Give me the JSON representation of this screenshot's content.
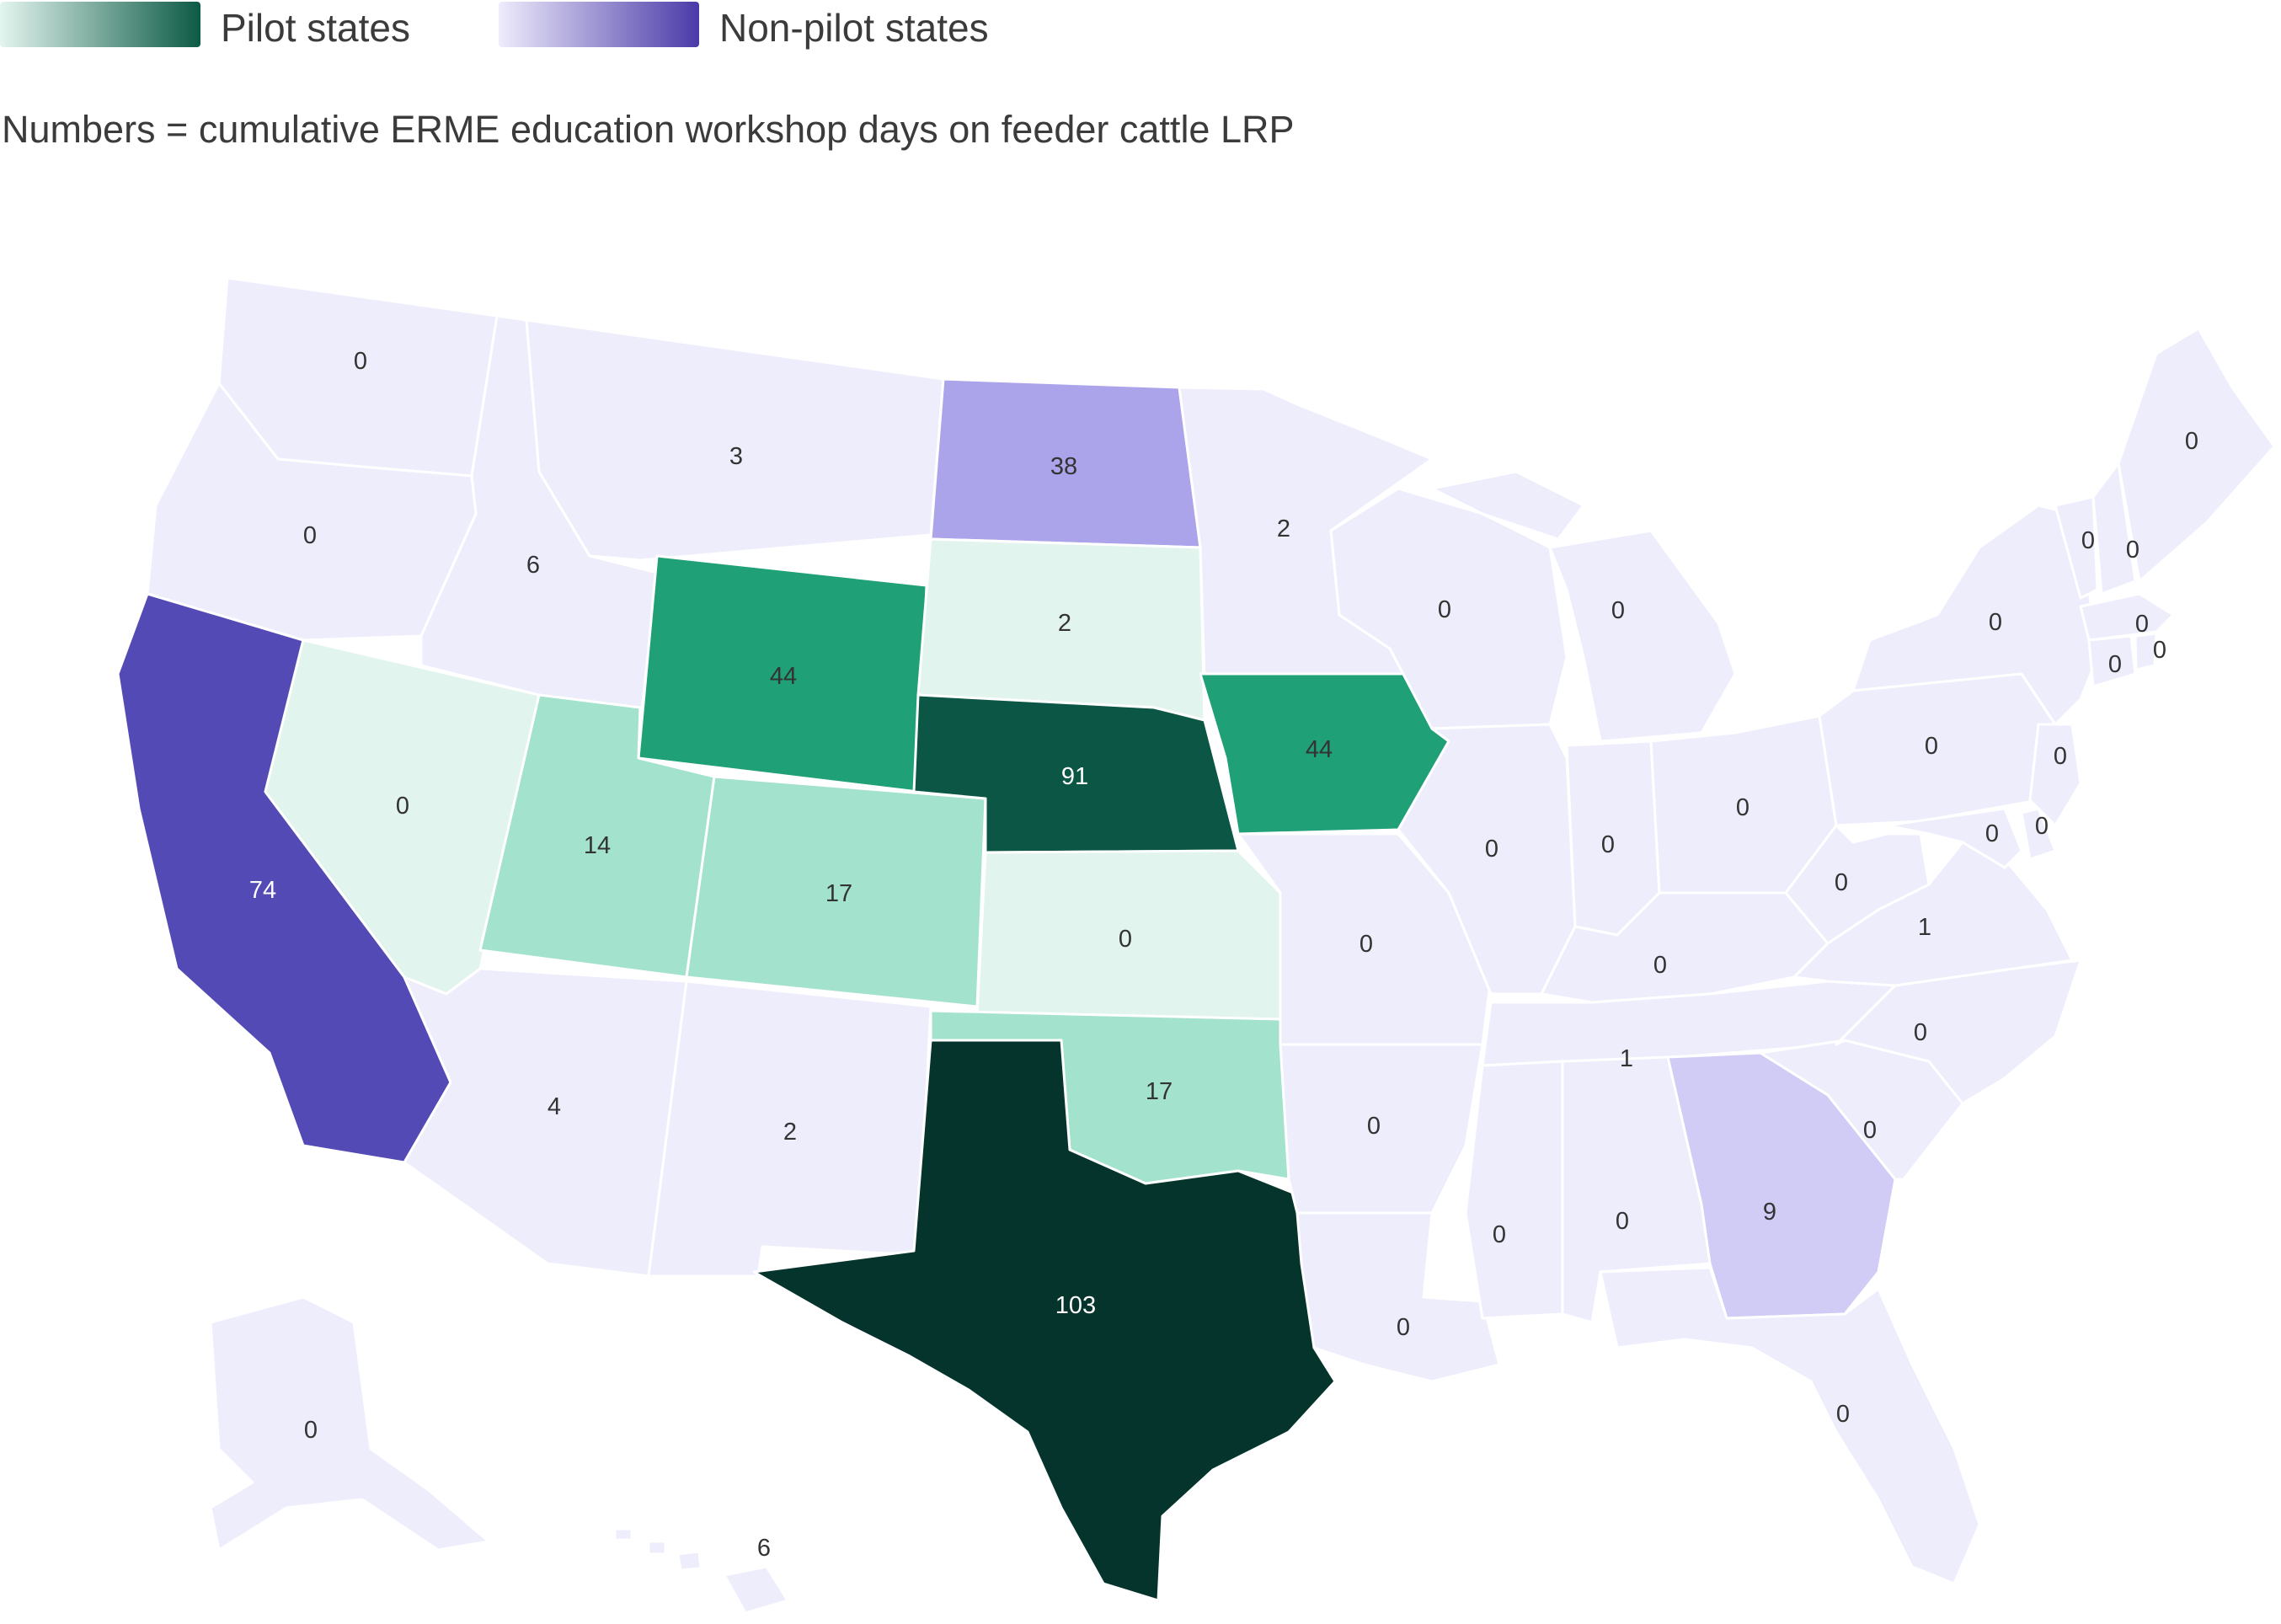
{
  "legend": {
    "pilot_label": "Pilot states",
    "nonpilot_label": "Non-pilot states",
    "pilot_gradient": [
      "#e3f5ef",
      "#0c5a45"
    ],
    "nonpilot_gradient": [
      "#eeecfc",
      "#4a3aa8"
    ]
  },
  "subtitle": "Numbers = cumulative ERME education workshop days on feeder cattle LRP",
  "colors": {
    "nonpilot_base": "#eeedfc",
    "nonpilot_light": "#d0ccf6",
    "nonpilot_mid": "#aca4ea",
    "nonpilot_dark": "#534ab6",
    "pilot_pale": "#e2f4ee",
    "pilot_light": "#a3e2cc",
    "pilot_mid": "#1fa077",
    "pilot_dark": "#0b5645",
    "pilot_darkest": "#05342c"
  },
  "map_data": {
    "metric": "cumulative ERME education workshop days on feeder cattle LRP",
    "states": [
      {
        "code": "WA",
        "value": "0",
        "pilot": false
      },
      {
        "code": "OR",
        "value": "0",
        "pilot": false
      },
      {
        "code": "CA",
        "value": "74",
        "pilot": false
      },
      {
        "code": "NV",
        "value": "0",
        "pilot": true
      },
      {
        "code": "ID",
        "value": "6",
        "pilot": false
      },
      {
        "code": "MT",
        "value": "3",
        "pilot": false
      },
      {
        "code": "WY",
        "value": "44",
        "pilot": true
      },
      {
        "code": "UT",
        "value": "14",
        "pilot": true
      },
      {
        "code": "CO",
        "value": "17",
        "pilot": true
      },
      {
        "code": "AZ",
        "value": "4",
        "pilot": false
      },
      {
        "code": "NM",
        "value": "2",
        "pilot": false
      },
      {
        "code": "ND",
        "value": "38",
        "pilot": false
      },
      {
        "code": "SD",
        "value": "2",
        "pilot": true
      },
      {
        "code": "NE",
        "value": "91",
        "pilot": true
      },
      {
        "code": "KS",
        "value": "0",
        "pilot": true
      },
      {
        "code": "OK",
        "value": "17",
        "pilot": true
      },
      {
        "code": "TX",
        "value": "103",
        "pilot": true
      },
      {
        "code": "MN",
        "value": "2",
        "pilot": false
      },
      {
        "code": "IA",
        "value": "44",
        "pilot": true
      },
      {
        "code": "MO",
        "value": "0",
        "pilot": false
      },
      {
        "code": "AR",
        "value": "0",
        "pilot": false
      },
      {
        "code": "LA",
        "value": "0",
        "pilot": false
      },
      {
        "code": "WI",
        "value": "0",
        "pilot": false
      },
      {
        "code": "IL",
        "value": "0",
        "pilot": false
      },
      {
        "code": "MI",
        "value": "0",
        "pilot": false
      },
      {
        "code": "IN",
        "value": "0",
        "pilot": false
      },
      {
        "code": "OH",
        "value": "0",
        "pilot": false
      },
      {
        "code": "KY",
        "value": "0",
        "pilot": false
      },
      {
        "code": "TN",
        "value": "1",
        "pilot": false
      },
      {
        "code": "MS",
        "value": "0",
        "pilot": false
      },
      {
        "code": "AL",
        "value": "0",
        "pilot": false
      },
      {
        "code": "GA",
        "value": "9",
        "pilot": false
      },
      {
        "code": "FL",
        "value": "0",
        "pilot": false
      },
      {
        "code": "SC",
        "value": "0",
        "pilot": false
      },
      {
        "code": "NC",
        "value": "0",
        "pilot": false
      },
      {
        "code": "VA",
        "value": "1",
        "pilot": false
      },
      {
        "code": "WV",
        "value": "0",
        "pilot": false
      },
      {
        "code": "PA",
        "value": "0",
        "pilot": false
      },
      {
        "code": "NY",
        "value": "0",
        "pilot": false
      },
      {
        "code": "NJ",
        "value": "0",
        "pilot": false
      },
      {
        "code": "MD",
        "value": "0",
        "pilot": false
      },
      {
        "code": "DE",
        "value": "0",
        "pilot": false
      },
      {
        "code": "VT",
        "value": "0",
        "pilot": false
      },
      {
        "code": "NH",
        "value": "0",
        "pilot": false
      },
      {
        "code": "MA",
        "value": "0",
        "pilot": false
      },
      {
        "code": "CT",
        "value": "0",
        "pilot": false
      },
      {
        "code": "RI",
        "value": "0",
        "pilot": false
      },
      {
        "code": "ME",
        "value": "0",
        "pilot": false
      },
      {
        "code": "AK",
        "value": "0",
        "pilot": false
      },
      {
        "code": "HI",
        "value": "6",
        "pilot": false
      }
    ]
  }
}
